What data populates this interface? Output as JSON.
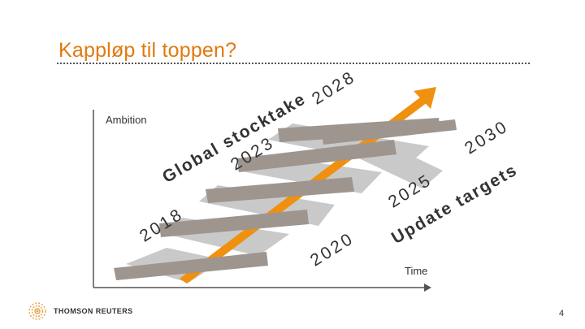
{
  "slide": {
    "title": "Kappløp til toppen?",
    "page_number": "4"
  },
  "axes": {
    "y_label": "Ambition",
    "x_label": "Time"
  },
  "years": {
    "y2018": "2018",
    "y2020": "2020",
    "y2023": "2023",
    "y2025": "2025",
    "y2028": "2028",
    "y2030": "2030"
  },
  "labels": {
    "global_stocktake": "Global stocktake",
    "update_targets": "Update targets"
  },
  "footer": {
    "brand": "THOMSON REUTERS",
    "logo_icon": "thomson-reuters-logo-icon"
  },
  "colors": {
    "title": "#E07A10",
    "arrow": "#F0900F",
    "step_dark": "#9E958F",
    "step_light": "#C9C9C9"
  }
}
